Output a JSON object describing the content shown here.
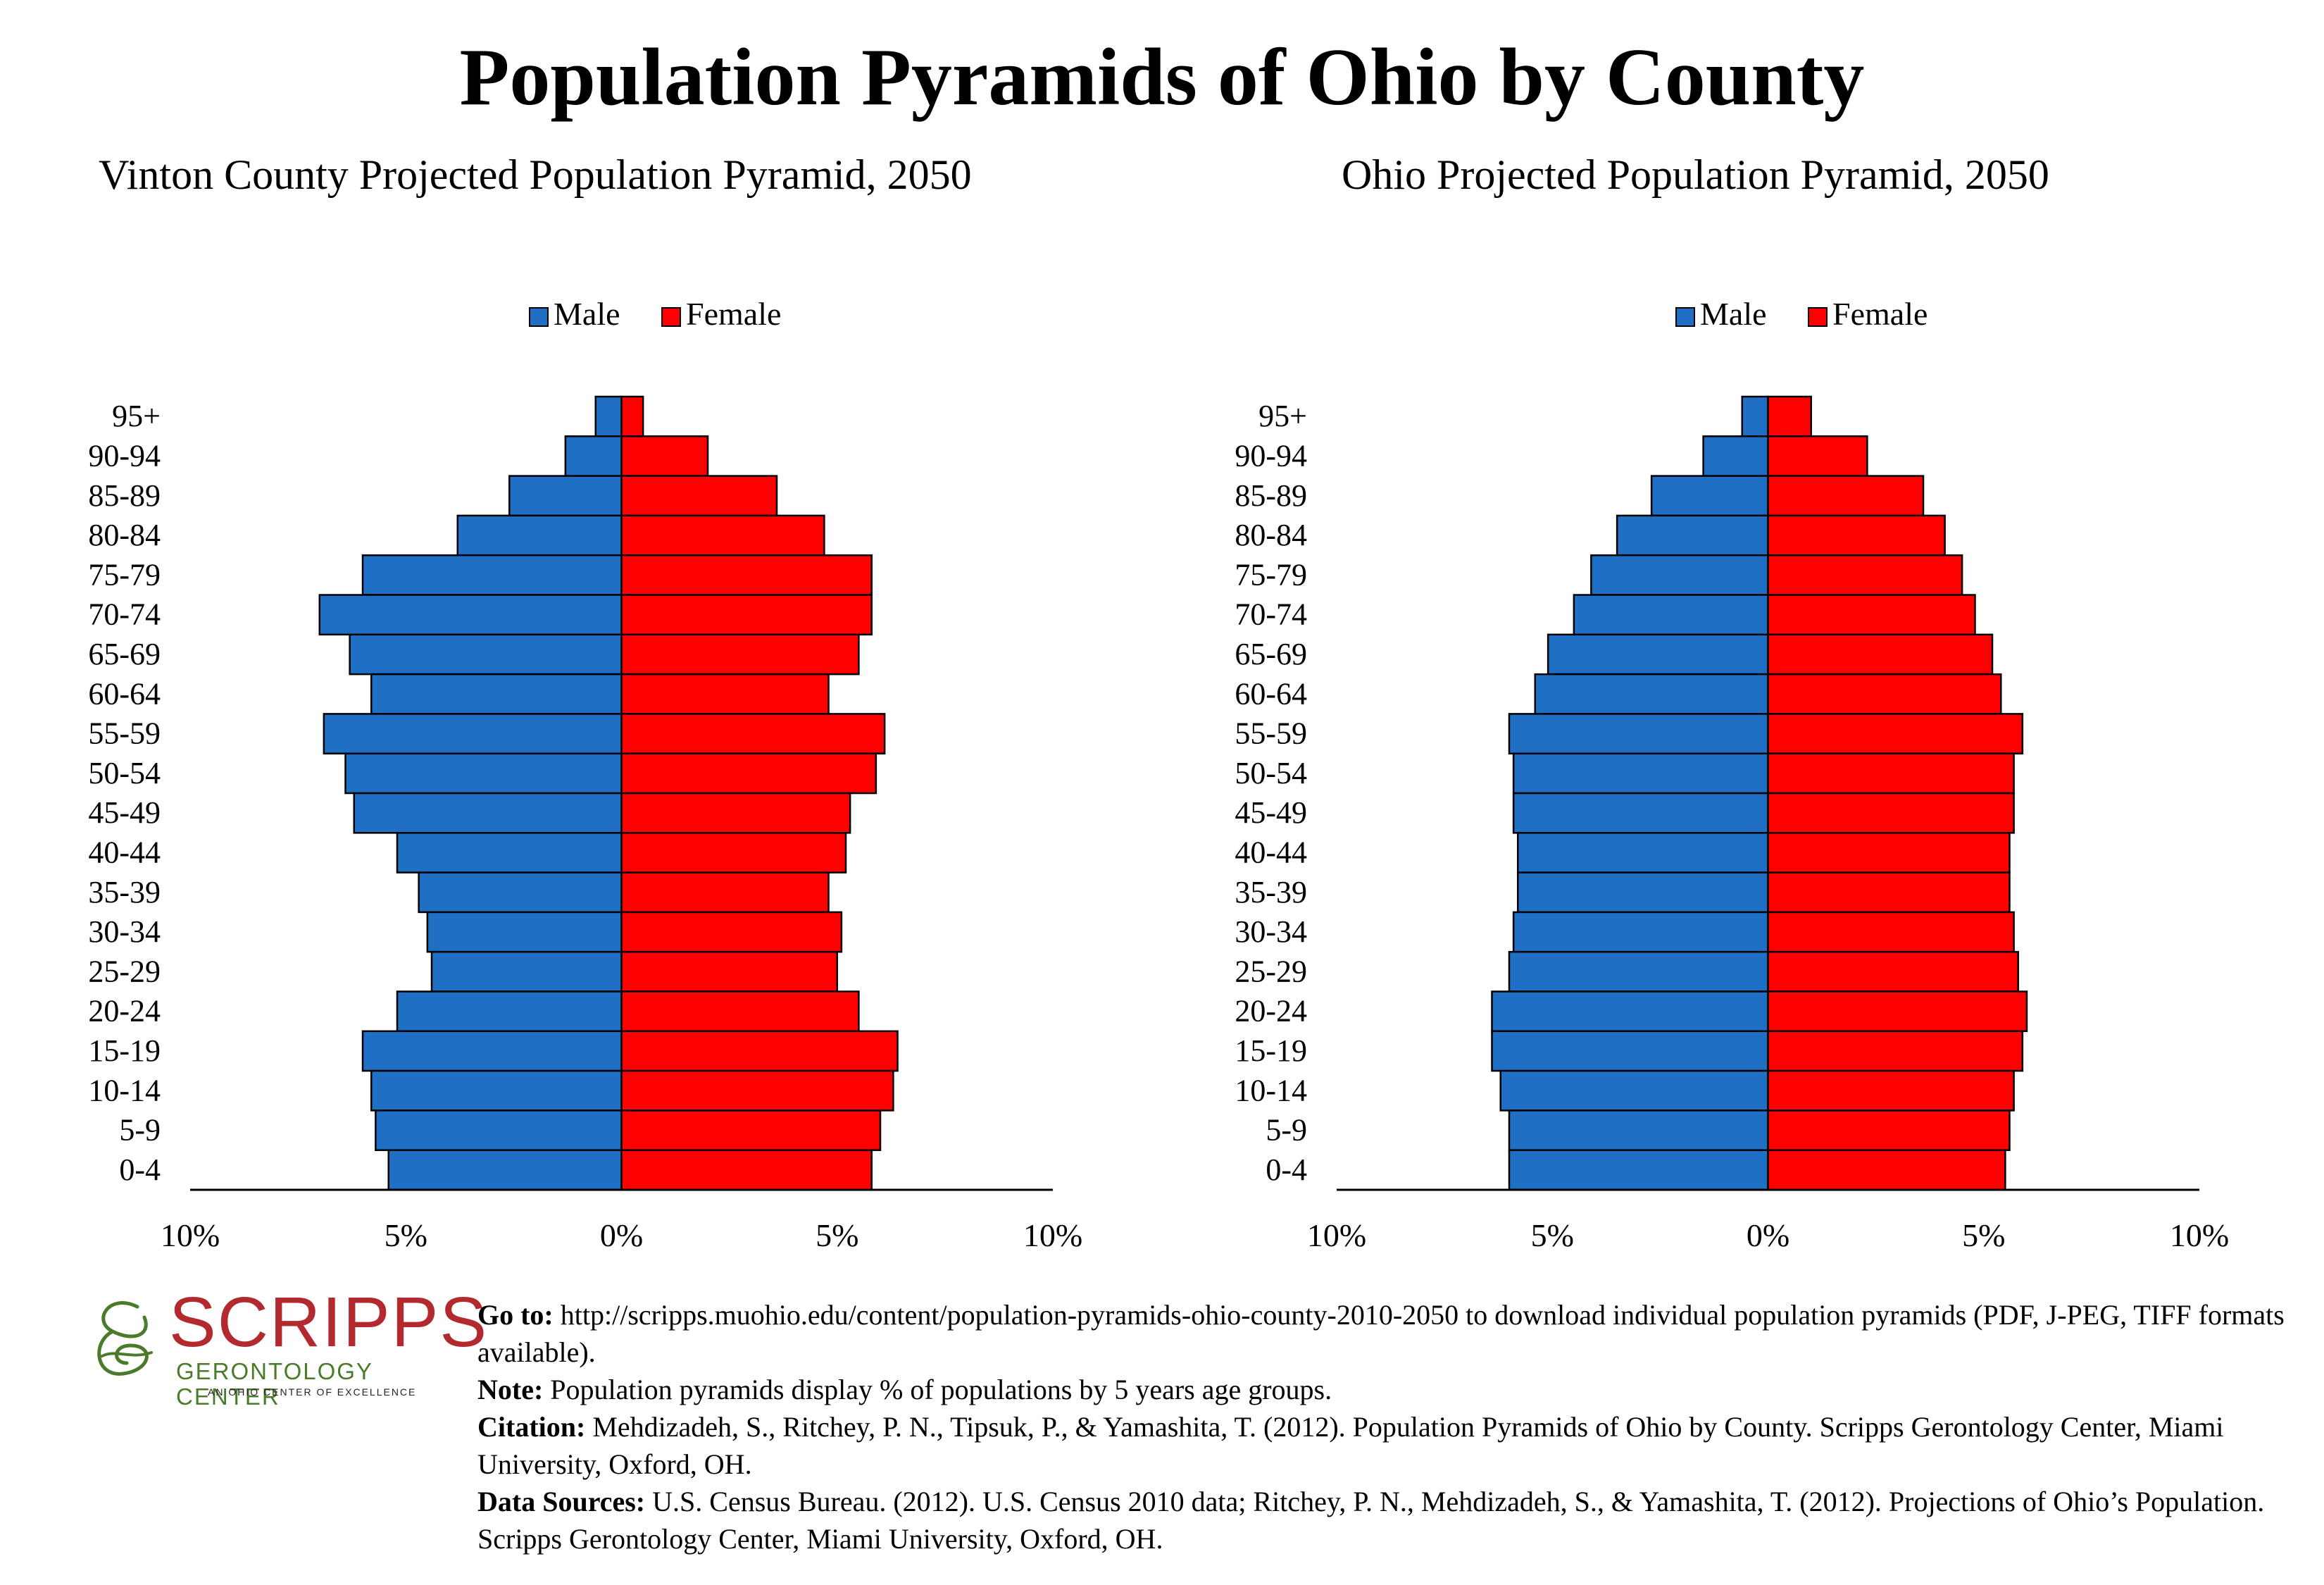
{
  "main_title": "Population Pyramids of Ohio by County",
  "legend": {
    "male": "Male",
    "female": "Female"
  },
  "colors": {
    "male": "#1f6fc5",
    "female": "#ff0000",
    "outline": "#000000"
  },
  "chart_data": [
    {
      "type": "bar",
      "title": "Vinton County Projected Population Pyramid, 2050",
      "orientation": "horizontal-pyramid",
      "categories": [
        "95+",
        "90-94",
        "85-89",
        "80-84",
        "75-79",
        "70-74",
        "65-69",
        "60-64",
        "55-59",
        "50-54",
        "45-49",
        "40-44",
        "35-39",
        "30-34",
        "25-29",
        "20-24",
        "15-19",
        "10-14",
        "5-9",
        "0-4"
      ],
      "series": [
        {
          "name": "Male",
          "values": [
            0.6,
            1.3,
            2.6,
            3.8,
            6.0,
            7.0,
            6.3,
            5.8,
            6.9,
            6.4,
            6.2,
            5.2,
            4.7,
            4.5,
            4.4,
            5.2,
            6.0,
            5.8,
            5.7,
            5.4
          ]
        },
        {
          "name": "Female",
          "values": [
            0.5,
            2.0,
            3.6,
            4.7,
            5.8,
            5.8,
            5.5,
            4.8,
            6.1,
            5.9,
            5.3,
            5.2,
            4.8,
            5.1,
            5.0,
            5.5,
            6.4,
            6.3,
            6.0,
            5.8
          ]
        }
      ],
      "xlim": [
        -10,
        10
      ],
      "tick_labels": [
        "10%",
        "5%",
        "0%",
        "5%",
        "10%"
      ],
      "legend_position": "top"
    },
    {
      "type": "bar",
      "title": "Ohio Projected Population Pyramid, 2050",
      "orientation": "horizontal-pyramid",
      "categories": [
        "95+",
        "90-94",
        "85-89",
        "80-84",
        "75-79",
        "70-74",
        "65-69",
        "60-64",
        "55-59",
        "50-54",
        "45-49",
        "40-44",
        "35-39",
        "30-34",
        "25-29",
        "20-24",
        "15-19",
        "10-14",
        "5-9",
        "0-4"
      ],
      "series": [
        {
          "name": "Male",
          "values": [
            0.6,
            1.5,
            2.7,
            3.5,
            4.1,
            4.5,
            5.1,
            5.4,
            6.0,
            5.9,
            5.9,
            5.8,
            5.8,
            5.9,
            6.0,
            6.4,
            6.4,
            6.2,
            6.0,
            6.0
          ]
        },
        {
          "name": "Female",
          "values": [
            1.0,
            2.3,
            3.6,
            4.1,
            4.5,
            4.8,
            5.2,
            5.4,
            5.9,
            5.7,
            5.7,
            5.6,
            5.6,
            5.7,
            5.8,
            6.0,
            5.9,
            5.7,
            5.6,
            5.5
          ]
        }
      ],
      "xlim": [
        -10,
        10
      ],
      "tick_labels": [
        "10%",
        "5%",
        "0%",
        "5%",
        "10%"
      ],
      "legend_position": "top"
    }
  ],
  "logo": {
    "word": "SCRIPPS",
    "subtitle": "GERONTOLOGY CENTER",
    "tagline": "AN OHIO CENTER OF EXCELLENCE"
  },
  "notes": {
    "goto_label": "Go to:",
    "goto_text": " http://scripps.muohio.edu/content/population-pyramids-ohio-county-2010-2050 to download individual population pyramids (PDF, J-PEG, TIFF formats available).",
    "note_label": "Note:",
    "note_text": " Population pyramids display % of populations by 5 years age groups.",
    "citation_label": "Citation:",
    "citation_text": " Mehdizadeh, S., Ritchey, P. N., Tipsuk, P., & Yamashita, T. (2012). Population Pyramids of Ohio by County. Scripps Gerontology Center, Miami University, Oxford, OH.",
    "sources_label": "Data Sources:",
    "sources_text": " U.S. Census Bureau. (2012). U.S. Census 2010 data; Ritchey, P. N., Mehdizadeh, S., & Yamashita, T. (2012). Projections of Ohio’s Population. Scripps Gerontology Center, Miami University, Oxford, OH."
  }
}
